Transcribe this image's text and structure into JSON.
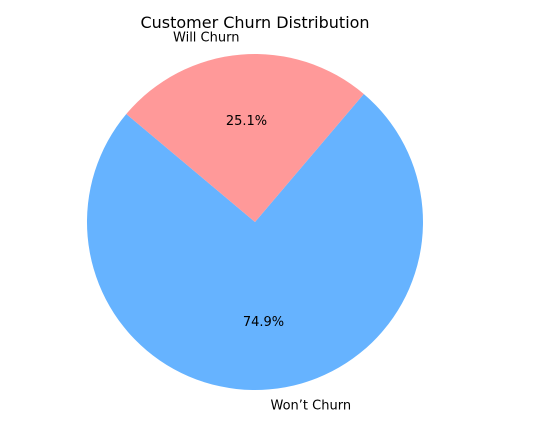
{
  "chart_data": {
    "type": "pie",
    "title": "Customer Churn Distribution",
    "slices": [
      {
        "label": "Won’t Churn",
        "value": 74.9,
        "pct_label": "74.9%",
        "color": "#66b3ff"
      },
      {
        "label": "Will Churn",
        "value": 25.1,
        "pct_label": "25.1%",
        "color": "#ff9999"
      }
    ],
    "start_angle_deg": 140,
    "direction": "counterclockwise"
  }
}
